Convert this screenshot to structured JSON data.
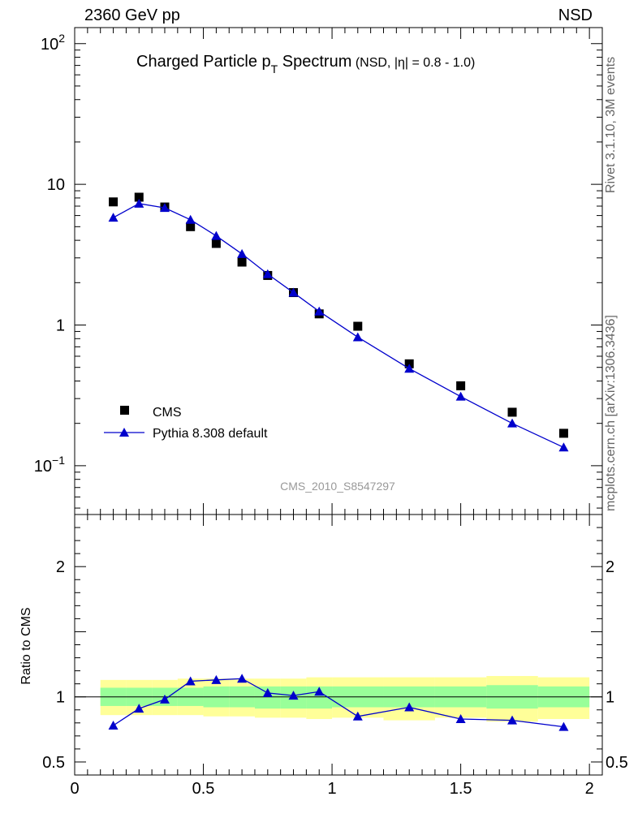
{
  "header": {
    "left": "2360 GeV pp",
    "right": "NSD"
  },
  "title": {
    "main": "Charged Particle p",
    "sub": "T",
    "main2": " Spectrum",
    "extra": "(NSD, |η| = 0.8 - 1.0)"
  },
  "analysis_label": "CMS_2010_S8547297",
  "side": {
    "rivet": "Rivet 3.1.10,  3M events",
    "mcplots": "mcplots.cern.ch [arXiv:1306.3436]"
  },
  "ratio_ylabel": "Ratio to CMS",
  "colors": {
    "mc": "#0000cc",
    "data": "#000000",
    "band_inner": "#99ff99",
    "band_outer": "#ffff99"
  },
  "chart_data": [
    {
      "type": "scatter",
      "yscale": "log",
      "ylim": [
        0.045,
        130
      ],
      "xlim": [
        0,
        2.05
      ],
      "yticks": [
        {
          "v": 0.1,
          "base": "10",
          "exp": "−1"
        },
        {
          "v": 1,
          "label": "1"
        },
        {
          "v": 10,
          "label": "10"
        },
        {
          "v": 100,
          "base": "10",
          "exp": "2"
        }
      ],
      "legend": "bottom-left",
      "series": [
        {
          "name": "CMS",
          "marker": "square",
          "x": [
            0.15,
            0.25,
            0.35,
            0.45,
            0.55,
            0.65,
            0.75,
            0.85,
            0.95,
            1.1,
            1.3,
            1.5,
            1.7,
            1.9
          ],
          "y": [
            7.5,
            8.1,
            6.9,
            5.0,
            3.8,
            2.8,
            2.25,
            1.7,
            1.2,
            0.98,
            0.53,
            0.37,
            0.24,
            0.17
          ]
        },
        {
          "name": "Pythia 8.308 default",
          "marker": "triangle",
          "x": [
            0.15,
            0.25,
            0.35,
            0.45,
            0.55,
            0.65,
            0.75,
            0.85,
            0.95,
            1.1,
            1.3,
            1.5,
            1.7,
            1.9
          ],
          "y": [
            5.8,
            7.3,
            6.8,
            5.6,
            4.3,
            3.2,
            2.3,
            1.7,
            1.25,
            0.82,
            0.49,
            0.31,
            0.2,
            0.135
          ]
        }
      ]
    },
    {
      "type": "line",
      "ylabel": "Ratio to CMS",
      "ylim": [
        0.4,
        2.4
      ],
      "xlim": [
        0,
        2.05
      ],
      "xticks": [
        {
          "v": 0,
          "label": "0"
        },
        {
          "v": 0.5,
          "label": "0.5"
        },
        {
          "v": 1,
          "label": "1"
        },
        {
          "v": 1.5,
          "label": "1.5"
        },
        {
          "v": 2,
          "label": "2"
        }
      ],
      "yticks": [
        {
          "v": 0.5,
          "label": "0.5"
        },
        {
          "v": 1,
          "label": "1"
        },
        {
          "v": 2,
          "label": "2"
        }
      ],
      "bands": {
        "edges": [
          0.1,
          0.2,
          0.3,
          0.4,
          0.5,
          0.6,
          0.7,
          0.8,
          0.9,
          1.0,
          1.2,
          1.4,
          1.6,
          1.8,
          2.0
        ],
        "inner_lo": [
          0.93,
          0.93,
          0.93,
          0.93,
          0.92,
          0.92,
          0.91,
          0.91,
          0.91,
          0.92,
          0.92,
          0.92,
          0.91,
          0.92
        ],
        "inner_hi": [
          1.07,
          1.07,
          1.07,
          1.07,
          1.08,
          1.08,
          1.08,
          1.08,
          1.08,
          1.08,
          1.08,
          1.08,
          1.09,
          1.08
        ],
        "outer_lo": [
          0.86,
          0.86,
          0.86,
          0.86,
          0.85,
          0.85,
          0.84,
          0.84,
          0.83,
          0.84,
          0.82,
          0.84,
          0.81,
          0.83
        ],
        "outer_hi": [
          1.13,
          1.13,
          1.13,
          1.14,
          1.14,
          1.14,
          1.14,
          1.14,
          1.15,
          1.15,
          1.15,
          1.15,
          1.16,
          1.15
        ]
      },
      "series": [
        {
          "name": "Pythia 8.308 default",
          "marker": "triangle",
          "x": [
            0.15,
            0.25,
            0.35,
            0.45,
            0.55,
            0.65,
            0.75,
            0.85,
            0.95,
            1.1,
            1.3,
            1.5,
            1.7,
            1.9
          ],
          "y": [
            0.78,
            0.91,
            0.98,
            1.12,
            1.13,
            1.14,
            1.03,
            1.01,
            1.04,
            0.85,
            0.92,
            0.83,
            0.82,
            0.77
          ]
        }
      ]
    }
  ]
}
